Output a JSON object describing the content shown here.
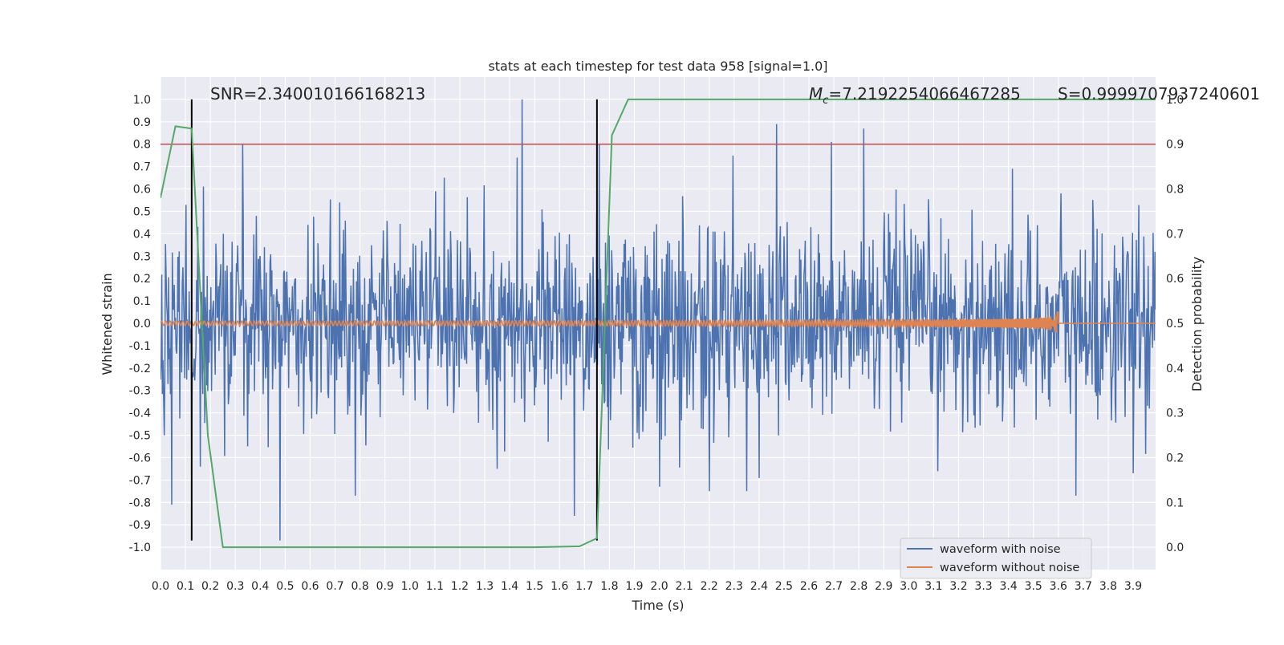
{
  "chart_data": {
    "type": "line",
    "title": "stats at each timestep for test data 958 [signal=1.0]",
    "xlabel": "Time (s)",
    "ylabel": "Whitened strain",
    "y2label": "Detection probability",
    "xlim": [
      0.0,
      3.99
    ],
    "ylim": [
      -1.1,
      1.1
    ],
    "y2lim": [
      -0.05,
      1.05
    ],
    "x_ticks": [
      0.0,
      0.1,
      0.2,
      0.3,
      0.4,
      0.5,
      0.6,
      0.7,
      0.8,
      0.9,
      1.0,
      1.1,
      1.2,
      1.3,
      1.4,
      1.5,
      1.6,
      1.7,
      1.8,
      1.9,
      2.0,
      2.1,
      2.2,
      2.3,
      2.4,
      2.5,
      2.6,
      2.7,
      2.8,
      2.9,
      3.0,
      3.1,
      3.2,
      3.3,
      3.4,
      3.5,
      3.6,
      3.7,
      3.8,
      3.9
    ],
    "y_ticks": [
      -1.0,
      -0.9,
      -0.8,
      -0.7,
      -0.6,
      -0.5,
      -0.4,
      -0.3,
      -0.2,
      -0.1,
      0.0,
      0.1,
      0.2,
      0.3,
      0.4,
      0.5,
      0.6,
      0.7,
      0.8,
      0.9,
      1.0
    ],
    "y2_ticks": [
      0.0,
      0.1,
      0.2,
      0.3,
      0.4,
      0.5,
      0.6,
      0.7,
      0.8,
      0.9,
      1.0
    ],
    "grid": true,
    "legend_position": "lower-right",
    "annotations": {
      "snr": "SNR=2.340010166168213",
      "mc_symbol": "M",
      "mc_sub": "c",
      "mc_value": "=7.2192254066467285",
      "s": "S=0.9999707937240601"
    },
    "threshold_line": {
      "y2": 0.9,
      "color": "#c44e52"
    },
    "vertical_markers": [
      0.125,
      1.75
    ],
    "series": [
      {
        "name": "waveform with noise",
        "color": "#4c72b0",
        "axis": "left",
        "noise_std": 0.22,
        "spikes": [
          {
            "x": 0.045,
            "y": -0.81
          },
          {
            "x": 0.125,
            "y": 0.84
          },
          {
            "x": 0.125,
            "y": -0.62
          },
          {
            "x": 0.16,
            "y": -0.64
          },
          {
            "x": 0.33,
            "y": 0.8
          },
          {
            "x": 0.48,
            "y": -0.97
          },
          {
            "x": 0.78,
            "y": -0.77
          },
          {
            "x": 1.45,
            "y": 1.0
          },
          {
            "x": 1.43,
            "y": 0.74
          },
          {
            "x": 1.35,
            "y": -0.65
          },
          {
            "x": 1.66,
            "y": -0.86
          },
          {
            "x": 1.76,
            "y": 0.8
          },
          {
            "x": 2.47,
            "y": 0.89
          },
          {
            "x": 2.82,
            "y": 0.87
          },
          {
            "x": 2.69,
            "y": 0.81
          },
          {
            "x": 2.35,
            "y": -0.75
          },
          {
            "x": 2.2,
            "y": -0.75
          },
          {
            "x": 2.0,
            "y": -0.73
          },
          {
            "x": 3.67,
            "y": -0.77
          },
          {
            "x": 3.9,
            "y": -0.67
          },
          {
            "x": 3.61,
            "y": 0.58
          }
        ]
      },
      {
        "name": "waveform without noise",
        "color": "#dd8452",
        "axis": "left",
        "chirp_end": 3.6,
        "base_amp": 0.01,
        "peak_amp": 0.065
      },
      {
        "name": "detection probability",
        "color": "#55a868",
        "axis": "right",
        "x": [
          0.0,
          0.06,
          0.125,
          0.19,
          0.25,
          0.3,
          0.5,
          1.0,
          1.5,
          1.68,
          1.75,
          1.81,
          1.875,
          2.0,
          3.0,
          3.99
        ],
        "values": [
          0.78,
          0.94,
          0.935,
          0.25,
          0.0,
          0.0,
          0.0,
          0.0,
          0.0,
          0.002,
          0.02,
          0.92,
          1.0,
          1.0,
          1.0,
          1.0
        ]
      }
    ]
  }
}
